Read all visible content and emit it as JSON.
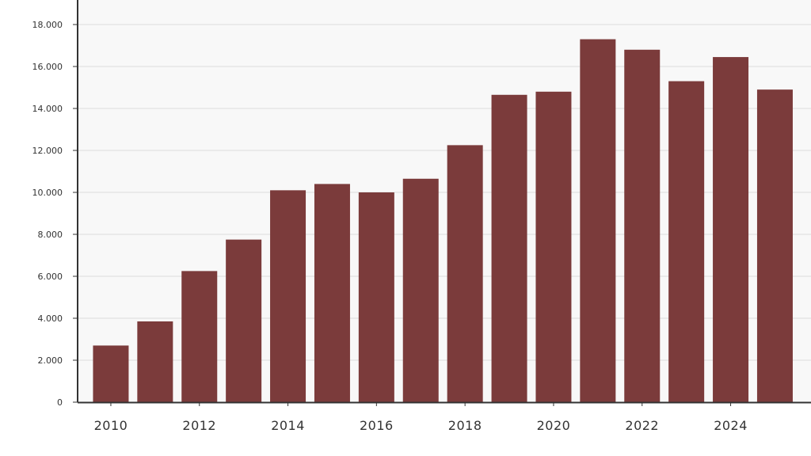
{
  "colors": {
    "bar": "#7b3b3b",
    "plot_background": "#f8f8f8",
    "gridline": "#dcdcdc",
    "axis": "#333333"
  },
  "chart_data": {
    "type": "bar",
    "categories": [
      "2010",
      "2011",
      "2012",
      "2013",
      "2014",
      "2015",
      "2016",
      "2017",
      "2018",
      "2019",
      "2020",
      "2021",
      "2022",
      "2023",
      "2024",
      "2025"
    ],
    "series": [
      {
        "values": [
          2700,
          3850,
          6250,
          7750,
          10100,
          10400,
          10000,
          10650,
          12250,
          14650,
          14800,
          17300,
          16800,
          15300,
          16450,
          14900
        ]
      }
    ],
    "x_tick_labels": [
      "2010",
      "2012",
      "2014",
      "2016",
      "2018",
      "2020",
      "2022",
      "2024"
    ],
    "y_tick_labels": [
      "0",
      "2.000",
      "4.000",
      "6.000",
      "8.000",
      "10.000",
      "12.000",
      "14.000",
      "16.000",
      "18.000"
    ],
    "y_ticks": [
      0,
      2000,
      4000,
      6000,
      8000,
      10000,
      12000,
      14000,
      16000,
      18000
    ],
    "ylim": [
      0,
      18000
    ],
    "grid": true,
    "legend": "none",
    "title": "",
    "xlabel": "",
    "ylabel": ""
  }
}
